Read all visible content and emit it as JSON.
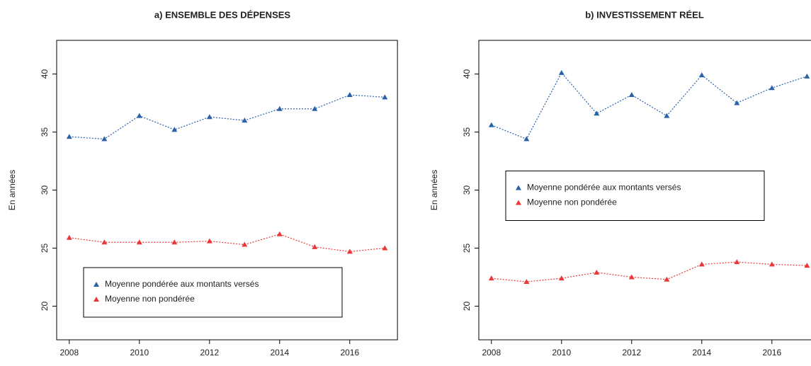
{
  "chart_data": [
    {
      "type": "line",
      "title": "a) ENSEMBLE DES DÉPENSES",
      "y_label": "En années",
      "x": [
        2008,
        2009,
        2010,
        2011,
        2012,
        2013,
        2014,
        2015,
        2016,
        2017
      ],
      "xlim": [
        2007.64,
        2017.36
      ],
      "xticks": [
        2008,
        2010,
        2012,
        2014,
        2016
      ],
      "ylim": [
        17.1,
        42.9
      ],
      "yticks": [
        20,
        25,
        30,
        35,
        40
      ],
      "legend": "bottom",
      "series": [
        {
          "name": "Moyenne pondérée aux montants versés",
          "color": "#2a62a8",
          "values": [
            34.6,
            34.4,
            36.4,
            35.2,
            36.3,
            36.0,
            37.0,
            37.0,
            38.2,
            38.0
          ]
        },
        {
          "name": "Moyenne non pondérée",
          "color": "#e8383a",
          "values": [
            25.9,
            25.5,
            25.5,
            25.5,
            25.6,
            25.3,
            26.2,
            25.1,
            24.7,
            25.0
          ]
        }
      ]
    },
    {
      "type": "line",
      "title": "b) INVESTISSEMENT RÉEL",
      "y_label": "En années",
      "x": [
        2008,
        2009,
        2010,
        2011,
        2012,
        2013,
        2014,
        2015,
        2016,
        2017
      ],
      "xlim": [
        2007.64,
        2017.36
      ],
      "xticks": [
        2008,
        2010,
        2012,
        2014,
        2016
      ],
      "ylim": [
        17.1,
        42.9
      ],
      "yticks": [
        20,
        25,
        30,
        35,
        40
      ],
      "legend": "center",
      "series": [
        {
          "name": "Moyenne pondérée aux montants versés",
          "color": "#2a62a8",
          "values": [
            35.6,
            34.4,
            40.1,
            36.6,
            38.2,
            36.4,
            39.9,
            37.5,
            38.8,
            39.8
          ]
        },
        {
          "name": "Moyenne non pondérée",
          "color": "#e8383a",
          "values": [
            22.4,
            22.1,
            22.4,
            22.9,
            22.5,
            22.3,
            23.6,
            23.8,
            23.6,
            23.5
          ]
        }
      ]
    }
  ]
}
